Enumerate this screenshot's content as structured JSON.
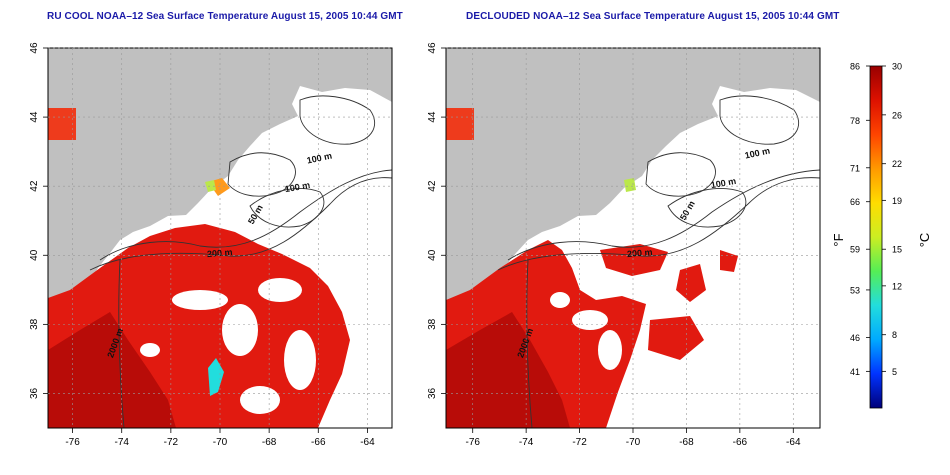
{
  "panels": [
    {
      "id": "left",
      "title": "RU COOL NOAA–12 Sea Surface Temperature August 15, 2005 10:44 GMT",
      "x_ticks": [
        "-76",
        "-74",
        "-72",
        "-70",
        "-68",
        "-66",
        "-64"
      ],
      "y_ticks": [
        "46",
        "44",
        "42",
        "40",
        "38",
        "36"
      ],
      "contour_labels": [
        "100 m",
        "100 m",
        "50 m",
        "200 m",
        "2000 m"
      ]
    },
    {
      "id": "right",
      "title": "DECLOUDED NOAA–12 Sea Surface Temperature August 15, 2005 10:44 GMT",
      "x_ticks": [
        "-76",
        "-74",
        "-72",
        "-70",
        "-68",
        "-66",
        "-64"
      ],
      "y_ticks": [
        "46",
        "44",
        "42",
        "40",
        "38",
        "36"
      ],
      "contour_labels": [
        "100 m",
        "100 m",
        "50 m",
        "200 m",
        "2000 m"
      ]
    }
  ],
  "map_extent": {
    "lon": [
      -77,
      -63
    ],
    "lat": [
      35,
      46
    ]
  },
  "colorbar": {
    "left_unit": "°F",
    "right_unit": "°C",
    "f_ticks": [
      "86",
      "78",
      "71",
      "66",
      "59",
      "53",
      "46",
      "41"
    ],
    "c_ticks": [
      "30",
      "26",
      "22",
      "19",
      "15",
      "12",
      "8",
      "5"
    ],
    "colors": [
      "#00007a",
      "#0033ff",
      "#00aaff",
      "#22dddd",
      "#55ee55",
      "#ccee22",
      "#ffdd00",
      "#ff9900",
      "#ff4400",
      "#dd1100",
      "#990000"
    ]
  },
  "colors": {
    "land": "#c0c0c0",
    "ocean": "#ffffff",
    "sst_warm": "#e11a10",
    "sst_hot": "#b80c08",
    "title": "#1a1aa8"
  }
}
